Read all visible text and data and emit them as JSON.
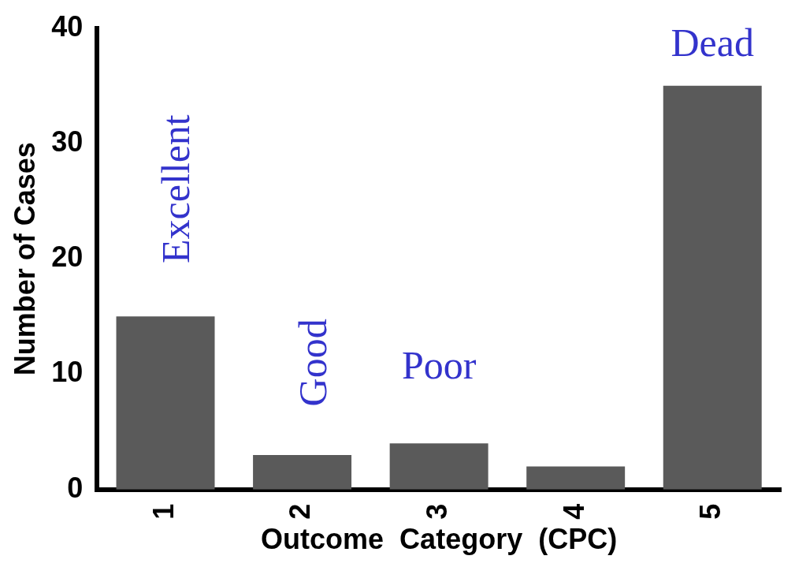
{
  "chart_data": {
    "type": "bar",
    "xlabel": "Outcome  Category  (CPC)",
    "ylabel": "Number of Cases",
    "categories": [
      "1",
      "2",
      "3",
      "4",
      "5"
    ],
    "values": [
      15,
      3,
      4,
      2,
      35
    ],
    "color": "#5a5a5a",
    "ylim": [
      0,
      40
    ],
    "yticks": [
      0,
      10,
      20,
      30,
      40
    ],
    "grid": false,
    "annotations": [
      "Excellent",
      "Good",
      "Poor",
      "Dead"
    ]
  }
}
